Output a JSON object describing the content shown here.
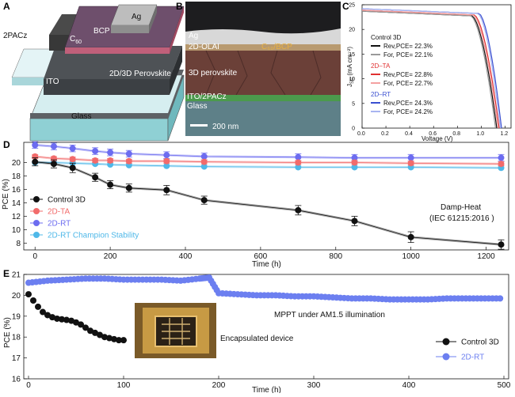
{
  "panels": {
    "a": {
      "letter": "A",
      "labels": {
        "ag": "Ag",
        "bcp": "BCP",
        "c60": "C",
        "c60_sub": "60",
        "pacz": "2PACz",
        "perovskite": "2D/3D Perovskite",
        "ito": "ITO",
        "glass": "Glass"
      }
    },
    "b": {
      "letter": "B",
      "labels": {
        "ag": "Ag",
        "olai": "2D-OLAI",
        "c60bcp": "C₆₀/BCP",
        "perovskite": "3D perovskite",
        "ito": "ITO/2PACz",
        "glass": "Glass",
        "scale": "200 nm"
      }
    },
    "c": {
      "letter": "C",
      "xlabel": "Voltage (V)",
      "ylabel": "J",
      "ylabel_sub": "SC",
      "ylabel_unit": "(mA cm⁻²)",
      "xticks": [
        "0.0",
        "0.2",
        "0.4",
        "0.6",
        "0.8",
        "1.0",
        "1.2"
      ],
      "yticks": [
        "0",
        "5",
        "10",
        "15",
        "20",
        "25"
      ],
      "legend": [
        {
          "header": "Control 3D",
          "header_color": "#111111",
          "rev": "Rev,PCE= 22.3%",
          "rev_color": "#111111",
          "for": "For, PCE= 22.1%",
          "for_color": "#9a9a9a"
        },
        {
          "header": "2D–TA",
          "header_color": "#e03030",
          "rev": "Rev,PCE= 22.8%",
          "rev_color": "#e03030",
          "for": "For, PCE= 22.7%",
          "for_color": "#f4a0a0"
        },
        {
          "header": "2D–RT",
          "header_color": "#3a4fd0",
          "rev": "Rev,PCE= 24.3%",
          "rev_color": "#3a4fd0",
          "for": "For, PCE= 24.2%",
          "for_color": "#a8b4f0"
        }
      ]
    },
    "d": {
      "letter": "D",
      "ylabel": "PCE (%)",
      "xlabel": "Time (h)",
      "annotation_line1": "Damp-Heat",
      "annotation_line2": "(IEC 61215:2016 )",
      "legend": [
        {
          "label": "Control 3D",
          "color": "#111111"
        },
        {
          "label": "2D-TA",
          "color": "#f26b6b"
        },
        {
          "label": "2D-RT",
          "color": "#6c6cf0"
        },
        {
          "label": "2D-RT Champion Stability",
          "color": "#4fb8e8"
        }
      ]
    },
    "e": {
      "letter": "E",
      "ylabel": "PCE (%)",
      "xlabel": "Time (h)",
      "annotation": "MPPT under AM1.5 illumination",
      "photo_caption": "Encapsulated device",
      "legend": [
        {
          "label": "Control 3D",
          "color": "#111111"
        },
        {
          "label": "2D-RT",
          "color": "#6c7ff0"
        }
      ]
    }
  },
  "chart_data": [
    {
      "panel": "C",
      "type": "line",
      "xlabel": "Voltage (V)",
      "ylabel": "JSC (mA cm-2)",
      "xlim": [
        0,
        1.25
      ],
      "ylim": [
        0,
        25
      ],
      "series": [
        {
          "name": "Control 3D Rev",
          "color": "#111111",
          "jsc": 23.7,
          "voc": 1.13,
          "knee": 0.92
        },
        {
          "name": "Control 3D For",
          "color": "#9a9a9a",
          "jsc": 23.7,
          "voc": 1.12,
          "knee": 0.91
        },
        {
          "name": "2D-TA Rev",
          "color": "#e03030",
          "jsc": 23.9,
          "voc": 1.15,
          "knee": 0.94
        },
        {
          "name": "2D-TA For",
          "color": "#f4a0a0",
          "jsc": 23.9,
          "voc": 1.14,
          "knee": 0.93
        },
        {
          "name": "2D-RT Rev",
          "color": "#3a4fd0",
          "jsc": 24.2,
          "voc": 1.17,
          "knee": 0.98
        },
        {
          "name": "2D-RT For",
          "color": "#a8b4f0",
          "jsc": 24.2,
          "voc": 1.16,
          "knee": 0.97
        }
      ]
    },
    {
      "panel": "D",
      "type": "scatter",
      "xlabel": "Time (h)",
      "ylabel": "PCE (%)",
      "xlim": [
        -30,
        1260
      ],
      "ylim": [
        7,
        23
      ],
      "xticks": [
        0,
        200,
        400,
        600,
        800,
        1000,
        1200
      ],
      "yticks": [
        8,
        10,
        12,
        14,
        16,
        18,
        20
      ],
      "series": [
        {
          "name": "Control 3D",
          "color": "#111111",
          "x": [
            0,
            50,
            100,
            160,
            200,
            250,
            350,
            450,
            700,
            850,
            1000,
            1240
          ],
          "y": [
            20.1,
            19.8,
            19.2,
            17.8,
            16.7,
            16.2,
            15.9,
            14.4,
            12.9,
            11.3,
            8.9,
            7.8
          ],
          "err": [
            0.6,
            0.6,
            0.7,
            0.6,
            0.6,
            0.6,
            0.7,
            0.6,
            0.7,
            0.7,
            0.8,
            0.7
          ]
        },
        {
          "name": "2D-TA",
          "color": "#f26b6b",
          "x": [
            0,
            50,
            100,
            160,
            200,
            250,
            350,
            450,
            700,
            850,
            1000,
            1240
          ],
          "y": [
            20.9,
            20.6,
            20.5,
            20.3,
            20.3,
            20.2,
            20.2,
            20.1,
            20.0,
            20.0,
            19.9,
            19.8
          ],
          "err": [
            0.3,
            0.3,
            0.3,
            0.3,
            0.3,
            0.3,
            0.3,
            0.3,
            0.3,
            0.3,
            0.3,
            0.3
          ]
        },
        {
          "name": "2D-RT",
          "color": "#6c6cf0",
          "x": [
            0,
            50,
            100,
            160,
            200,
            250,
            350,
            450,
            700,
            850,
            1000,
            1240
          ],
          "y": [
            22.6,
            22.4,
            22.1,
            21.7,
            21.5,
            21.3,
            21.1,
            20.9,
            20.8,
            20.7,
            20.7,
            20.7
          ],
          "err": [
            0.5,
            0.5,
            0.5,
            0.5,
            0.5,
            0.5,
            0.5,
            0.5,
            0.5,
            0.5,
            0.5,
            0.5
          ]
        },
        {
          "name": "2D-RT Champion Stability",
          "color": "#4fb8e8",
          "x": [
            0,
            50,
            100,
            160,
            200,
            250,
            350,
            450,
            700,
            850,
            1000,
            1240
          ],
          "y": [
            20.0,
            20.0,
            19.9,
            19.8,
            19.7,
            19.6,
            19.5,
            19.4,
            19.3,
            19.3,
            19.3,
            19.2
          ],
          "err": [
            0,
            0,
            0,
            0,
            0,
            0,
            0,
            0,
            0,
            0,
            0,
            0
          ]
        }
      ]
    },
    {
      "panel": "E",
      "type": "scatter",
      "xlabel": "Time (h)",
      "ylabel": "PCE (%)",
      "xlim": [
        -5,
        505
      ],
      "ylim": [
        16,
        21
      ],
      "xticks": [
        0,
        100,
        200,
        300,
        400,
        500
      ],
      "yticks": [
        16,
        17,
        18,
        19,
        20,
        21
      ],
      "series": [
        {
          "name": "Control 3D",
          "color": "#111111",
          "x": [
            0,
            5,
            10,
            15,
            20,
            25,
            30,
            35,
            40,
            45,
            50,
            55,
            60,
            65,
            70,
            75,
            80,
            85,
            90,
            95,
            100
          ],
          "y": [
            20.05,
            19.75,
            19.45,
            19.2,
            19.05,
            18.95,
            18.88,
            18.85,
            18.82,
            18.78,
            18.7,
            18.6,
            18.45,
            18.3,
            18.2,
            18.1,
            18.0,
            17.95,
            17.9,
            17.85,
            17.85
          ]
        },
        {
          "name": "2D-RT",
          "color": "#6c7ff0",
          "x": [
            0,
            20,
            40,
            60,
            80,
            100,
            120,
            140,
            160,
            180,
            190,
            200,
            220,
            240,
            260,
            280,
            300,
            320,
            340,
            360,
            380,
            400,
            420,
            440,
            460,
            480,
            500
          ],
          "y": [
            20.6,
            20.7,
            20.75,
            20.8,
            20.8,
            20.75,
            20.75,
            20.75,
            20.7,
            20.8,
            20.85,
            20.1,
            20.05,
            20.0,
            20.0,
            19.95,
            19.95,
            19.9,
            19.85,
            19.85,
            19.8,
            19.8,
            19.8,
            19.85,
            19.85,
            19.85,
            19.85
          ]
        }
      ]
    }
  ]
}
